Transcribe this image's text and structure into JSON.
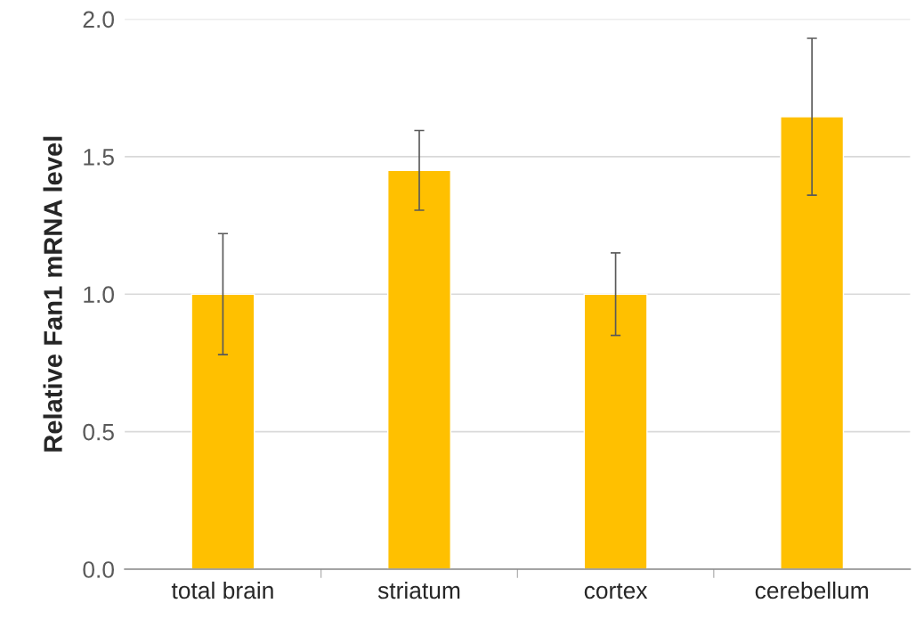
{
  "chart_data": {
    "type": "bar",
    "ylabel": "Relative Fan1 mRNA level",
    "categories": [
      "total brain",
      "striatum",
      "cortex",
      "cerebellum"
    ],
    "values": [
      1.0,
      1.45,
      1.0,
      1.645
    ],
    "errors": [
      0.22,
      0.145,
      0.15,
      0.285
    ],
    "color": "#ffc000",
    "ylim": [
      0,
      2.0
    ],
    "yticks": [
      {
        "value": 0,
        "label": "0.0"
      },
      {
        "value": 0.5,
        "label": "0.5"
      },
      {
        "value": 1.0,
        "label": "1.0"
      },
      {
        "value": 1.5,
        "label": "1.5"
      },
      {
        "value": 2.0,
        "label": "2.0"
      }
    ],
    "grid": "y"
  }
}
